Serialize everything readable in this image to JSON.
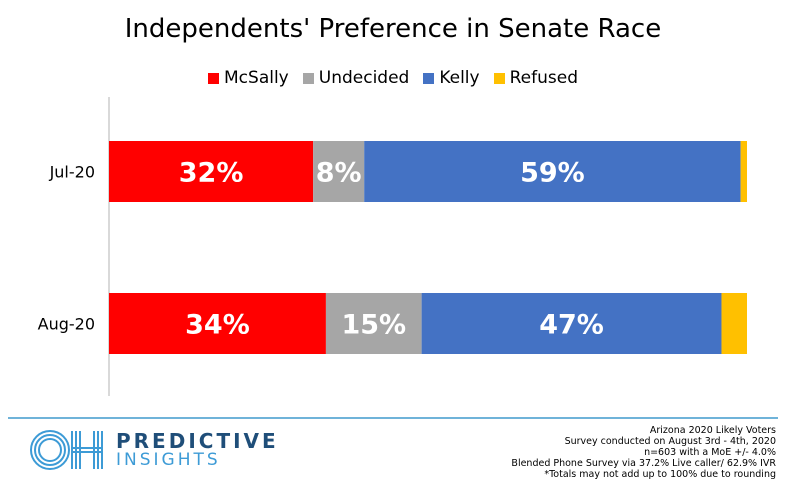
{
  "chart_data": {
    "type": "bar",
    "orientation": "horizontal-stacked",
    "title": "Independents' Preference in Senate Race",
    "categories": [
      "Jul-20",
      "Aug-20"
    ],
    "series": [
      {
        "name": "McSally",
        "color": "#ff0000",
        "values": [
          32,
          34
        ],
        "labels": [
          "32%",
          "34%"
        ]
      },
      {
        "name": "Undecided",
        "color": "#a6a6a6",
        "values": [
          8,
          15
        ],
        "labels": [
          "8%",
          "15%"
        ]
      },
      {
        "name": "Kelly",
        "color": "#4472c4",
        "values": [
          59,
          47
        ],
        "labels": [
          "59%",
          "47%"
        ]
      },
      {
        "name": "Refused",
        "color": "#ffc000",
        "values": [
          1,
          4
        ],
        "labels": [
          "",
          ""
        ]
      }
    ],
    "xlim": [
      0,
      100
    ],
    "legend": "top-center",
    "grid": false
  },
  "footer": {
    "brand_line1": "PREDICTIVE",
    "brand_line2": "INSIGHTS",
    "logo_text": "OH",
    "notes": [
      "Arizona 2020 Likely Voters",
      "Survey conducted on August 3rd - 4th, 2020",
      "n=603 with a MoE +/- 4.0%",
      "Blended Phone Survey via 37.2% Live caller/ 62.9% IVR",
      "*Totals may not add up to 100% due to rounding"
    ]
  }
}
